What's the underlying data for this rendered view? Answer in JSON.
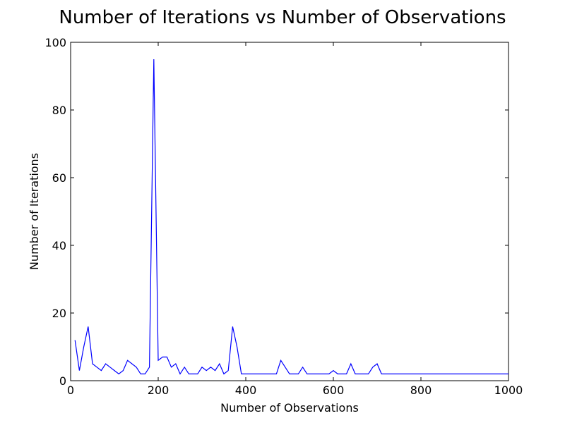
{
  "chart_data": {
    "type": "line",
    "title": "Number of Iterations vs Number of Observations",
    "xlabel": "Number of Observations",
    "ylabel": "Number of Iterations",
    "xlim": [
      0,
      1000
    ],
    "ylim": [
      0,
      100
    ],
    "xticks": [
      0,
      200,
      400,
      600,
      800,
      1000
    ],
    "yticks": [
      0,
      20,
      40,
      60,
      80,
      100
    ],
    "grid": false,
    "line_color": "#0000ff",
    "series": [
      {
        "x": [
          10,
          20,
          30,
          40,
          50,
          60,
          70,
          80,
          90,
          100,
          110,
          120,
          130,
          140,
          150,
          160,
          170,
          180,
          190,
          200,
          210,
          220,
          230,
          240,
          250,
          260,
          270,
          280,
          290,
          300,
          310,
          320,
          330,
          340,
          350,
          360,
          370,
          380,
          390,
          400,
          410,
          420,
          430,
          440,
          450,
          460,
          470,
          480,
          490,
          500,
          510,
          520,
          530,
          540,
          550,
          560,
          570,
          580,
          590,
          600,
          610,
          620,
          630,
          640,
          650,
          660,
          670,
          680,
          690,
          700,
          710,
          720,
          1000
        ],
        "y": [
          12,
          3,
          10,
          16,
          5,
          4,
          3,
          5,
          4,
          3,
          2,
          3,
          6,
          5,
          4,
          2,
          2,
          4,
          95,
          6,
          7,
          7,
          4,
          5,
          2,
          4,
          2,
          2,
          2,
          4,
          3,
          4,
          3,
          5,
          2,
          3,
          16,
          10,
          2,
          2,
          2,
          2,
          2,
          2,
          2,
          2,
          2,
          6,
          4,
          2,
          2,
          2,
          4,
          2,
          2,
          2,
          2,
          2,
          2,
          3,
          2,
          2,
          2,
          5,
          2,
          2,
          2,
          2,
          4,
          5,
          2,
          2,
          2
        ]
      }
    ]
  }
}
